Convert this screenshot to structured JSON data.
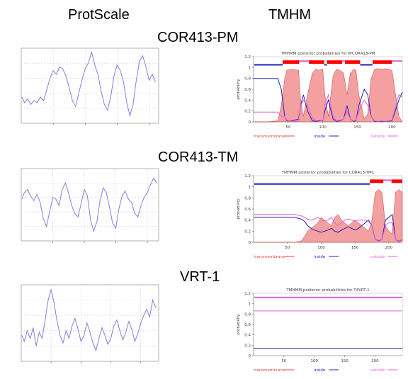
{
  "headers": {
    "left": "ProtScale",
    "right": "TMHM"
  },
  "rows": [
    {
      "label": "COR413-PM"
    },
    {
      "label": "COR413-TM"
    },
    {
      "label": "VRT-1"
    }
  ],
  "colors": {
    "protscale_line": "#8080e0",
    "transmembrane": "#f08080",
    "transmembrane_bar": "#ff0000",
    "inside": "#2020c0",
    "outside": "#e060e0"
  },
  "chart_data": [
    {
      "type": "line",
      "panel": "ProtScale",
      "row": "COR413-PM",
      "x": [
        1,
        5,
        10,
        15,
        20,
        25,
        30,
        35,
        40,
        45,
        50,
        55,
        60,
        65,
        70,
        75,
        80,
        85,
        90,
        95,
        100,
        105,
        110,
        115,
        120,
        125,
        130,
        135,
        140,
        145,
        150,
        155,
        160,
        165,
        170,
        175,
        180,
        185,
        190,
        195,
        200,
        205,
        210
      ],
      "series": [
        {
          "values": [
            -0.6,
            -0.9,
            -0.7,
            -1.0,
            -0.8,
            -0.9,
            -0.6,
            -0.8,
            -0.2,
            0.4,
            0.8,
            0.6,
            1.0,
            0.9,
            0.5,
            -0.1,
            -0.8,
            -1.1,
            -0.4,
            0.3,
            0.9,
            1.2,
            1.8,
            1.1,
            0.6,
            -0.3,
            -1.0,
            -1.3,
            -0.6,
            0.5,
            1.1,
            0.8,
            0.2,
            -0.9,
            -1.6,
            -1.0,
            0.3,
            1.3,
            1.6,
            1.0,
            0.3,
            0.6,
            0.2
          ]
        }
      ],
      "xlim": [
        0,
        215
      ],
      "ylim": [
        -2.0,
        2.0
      ],
      "xticks": [
        50,
        100,
        150,
        200
      ],
      "grid": true
    },
    {
      "type": "area",
      "panel": "TMHMM",
      "row": "COR413-PM",
      "title": "TMHMM posterior probabilities for WCOR413-PM",
      "ylabel": "probability",
      "xlim": [
        0,
        215
      ],
      "ylim": [
        0,
        1.2
      ],
      "xticks": [
        50,
        100,
        150,
        200
      ],
      "yticks": [
        0,
        0.2,
        0.4,
        0.6,
        0.8,
        1.0,
        1.2
      ],
      "legend": [
        "transmembrane",
        "inside",
        "outside"
      ],
      "x": [
        0,
        20,
        35,
        40,
        45,
        48,
        55,
        65,
        68,
        72,
        78,
        85,
        90,
        95,
        100,
        103,
        108,
        115,
        120,
        125,
        130,
        135,
        140,
        145,
        148,
        152,
        160,
        165,
        170,
        175,
        180,
        185,
        190,
        200,
        210,
        215
      ],
      "series": [
        {
          "name": "transmembrane",
          "values": [
            0,
            0,
            0.02,
            0.3,
            0.8,
            0.95,
            0.97,
            0.95,
            0.4,
            0.1,
            0.5,
            0.9,
            0.97,
            0.95,
            0.97,
            0.5,
            0.1,
            0.85,
            0.97,
            0.95,
            0.9,
            0.5,
            0.9,
            0.97,
            0.95,
            0.5,
            0.05,
            0.15,
            0.8,
            0.97,
            0.98,
            0.97,
            0.98,
            0.95,
            0.1,
            0
          ]
        },
        {
          "name": "inside",
          "values": [
            0.8,
            0.8,
            0.8,
            0.6,
            0.1,
            0.02,
            0.02,
            0.05,
            0.3,
            0.5,
            0.2,
            0.02,
            0.01,
            0.02,
            0.02,
            0.2,
            0.4,
            0.05,
            0.01,
            0.02,
            0.05,
            0.3,
            0.05,
            0.01,
            0.02,
            0.3,
            0.6,
            0.5,
            0.1,
            0.01,
            0.01,
            0.01,
            0.01,
            0.02,
            0.4,
            0.55
          ]
        },
        {
          "name": "outside",
          "values": [
            0.18,
            0.18,
            0.18,
            0.1,
            0.1,
            0.03,
            0.01,
            0.01,
            0.3,
            0.4,
            0.3,
            0.08,
            0.02,
            0.03,
            0.01,
            0.3,
            0.5,
            0.1,
            0.02,
            0.03,
            0.05,
            0.2,
            0.05,
            0.02,
            0.03,
            0.2,
            0.4,
            0.3,
            0.1,
            0.02,
            0.01,
            0.02,
            0.01,
            0.03,
            0.5,
            0.45
          ]
        }
      ],
      "topology": [
        {
          "state": "inside",
          "start": 1,
          "end": 42
        },
        {
          "state": "tm",
          "start": 42,
          "end": 66
        },
        {
          "state": "outside",
          "start": 66,
          "end": 80
        },
        {
          "state": "tm",
          "start": 80,
          "end": 102
        },
        {
          "state": "inside",
          "start": 102,
          "end": 106
        },
        {
          "state": "tm",
          "start": 106,
          "end": 128
        },
        {
          "state": "outside",
          "start": 128,
          "end": 132
        },
        {
          "state": "tm",
          "start": 132,
          "end": 154
        },
        {
          "state": "inside",
          "start": 154,
          "end": 172
        },
        {
          "state": "tm",
          "start": 172,
          "end": 200
        },
        {
          "state": "outside",
          "start": 200,
          "end": 215
        }
      ]
    },
    {
      "type": "line",
      "panel": "ProtScale",
      "row": "COR413-TM",
      "x": [
        1,
        5,
        10,
        15,
        20,
        25,
        30,
        35,
        40,
        45,
        50,
        55,
        60,
        65,
        70,
        75,
        80,
        85,
        90,
        95,
        100,
        105,
        110,
        115,
        120,
        125,
        130,
        135,
        140,
        145,
        150,
        155,
        160,
        165,
        170,
        175,
        180,
        185,
        190,
        195,
        200,
        205,
        210,
        215
      ],
      "series": [
        {
          "values": [
            0.6,
            1.0,
            1.2,
            0.8,
            0.5,
            0.9,
            0.4,
            -0.6,
            -1.1,
            -0.2,
            0.7,
            0.6,
            0.2,
            1.2,
            1.6,
            1.0,
            0.2,
            -0.3,
            -0.5,
            0.3,
            1.2,
            0.8,
            -0.7,
            -1.4,
            -0.8,
            0.5,
            1.3,
            1.0,
            0.1,
            -0.9,
            -1.2,
            0.0,
            0.8,
            1.1,
            0.6,
            0.4,
            -0.3,
            -0.5,
            0.2,
            0.7,
            1.0,
            1.5,
            1.9,
            1.6
          ]
        }
      ],
      "xlim": [
        0,
        218
      ],
      "ylim": [
        -2.0,
        2.5
      ],
      "xticks": [
        50,
        100,
        150,
        200
      ],
      "grid": true
    },
    {
      "type": "area",
      "panel": "TMHMM",
      "row": "COR413-TM",
      "title": "TMHMM posterior probabilities for COR413-TM1",
      "ylabel": "probability",
      "xlim": [
        0,
        220
      ],
      "ylim": [
        0,
        1.2
      ],
      "xticks": [
        50,
        100,
        150,
        200
      ],
      "yticks": [
        0,
        0.2,
        0.4,
        0.6,
        0.8,
        1.0,
        1.2
      ],
      "legend": [
        "transmembrane",
        "inside",
        "outside"
      ],
      "x": [
        0,
        20,
        40,
        60,
        70,
        75,
        80,
        85,
        90,
        95,
        100,
        105,
        110,
        115,
        120,
        125,
        130,
        135,
        140,
        145,
        150,
        155,
        160,
        165,
        170,
        175,
        180,
        185,
        190,
        195,
        200,
        205,
        210,
        215,
        220
      ],
      "series": [
        {
          "name": "transmembrane",
          "values": [
            0,
            0,
            0,
            0,
            0.02,
            0.1,
            0.2,
            0.25,
            0.3,
            0.35,
            0.45,
            0.4,
            0.35,
            0.3,
            0.45,
            0.5,
            0.4,
            0.35,
            0.3,
            0.35,
            0.4,
            0.35,
            0.3,
            0.25,
            0.2,
            0.4,
            0.9,
            0.95,
            0.9,
            0.3,
            0.2,
            0.15,
            0.9,
            0.95,
            0.9
          ]
        },
        {
          "name": "inside",
          "values": [
            0.45,
            0.45,
            0.45,
            0.45,
            0.42,
            0.38,
            0.3,
            0.25,
            0.22,
            0.2,
            0.18,
            0.2,
            0.22,
            0.25,
            0.2,
            0.18,
            0.22,
            0.25,
            0.28,
            0.25,
            0.22,
            0.25,
            0.3,
            0.35,
            0.4,
            0.3,
            0.05,
            0.03,
            0.05,
            0.4,
            0.45,
            0.5,
            0.05,
            0.02,
            0.05
          ]
        },
        {
          "name": "outside",
          "values": [
            0.5,
            0.5,
            0.5,
            0.5,
            0.48,
            0.45,
            0.42,
            0.4,
            0.42,
            0.45,
            0.4,
            0.38,
            0.4,
            0.45,
            0.35,
            0.3,
            0.35,
            0.4,
            0.42,
            0.4,
            0.38,
            0.4,
            0.4,
            0.4,
            0.38,
            0.3,
            0.05,
            0.02,
            0.05,
            0.3,
            0.35,
            0.35,
            0.05,
            0.03,
            0.05
          ]
        }
      ],
      "topology": [
        {
          "state": "inside",
          "start": 1,
          "end": 172
        },
        {
          "state": "tm",
          "start": 172,
          "end": 192
        },
        {
          "state": "outside",
          "start": 192,
          "end": 204
        },
        {
          "state": "tm",
          "start": 204,
          "end": 220
        }
      ]
    },
    {
      "type": "line",
      "panel": "ProtScale",
      "row": "VRT-1",
      "x": [
        1,
        5,
        10,
        15,
        20,
        25,
        30,
        35,
        40,
        45,
        50,
        55,
        60,
        65,
        70,
        75,
        80,
        85,
        90,
        95,
        100,
        105,
        110,
        115,
        120,
        125,
        130,
        135,
        140,
        145,
        150,
        155,
        160,
        165,
        170,
        175,
        180,
        185,
        190,
        195,
        200,
        205,
        210,
        215,
        220,
        225
      ],
      "series": [
        {
          "values": [
            -0.8,
            -1.2,
            -0.5,
            -1.0,
            -0.3,
            -1.5,
            -0.6,
            -1.0,
            0.2,
            1.5,
            2.2,
            1.3,
            0.1,
            -0.8,
            -1.3,
            -0.5,
            -1.0,
            -0.2,
            0.3,
            -0.4,
            -1.2,
            -0.8,
            0.0,
            -0.6,
            -1.3,
            -1.8,
            -1.0,
            -0.3,
            -0.8,
            -1.4,
            -1.0,
            -0.2,
            0.2,
            -0.5,
            -1.1,
            -0.6,
            0.1,
            -0.4,
            -1.2,
            -0.7,
            0.0,
            0.5,
            0.9,
            0.4,
            1.5,
            1.0
          ]
        }
      ],
      "xlim": [
        0,
        230
      ],
      "ylim": [
        -2.5,
        2.5
      ],
      "xticks": [
        50,
        100,
        150,
        200
      ],
      "grid": true
    },
    {
      "type": "line",
      "panel": "TMHMM",
      "row": "VRT-1",
      "title": "TMHMM posterior probabilities for T4VRT-1",
      "ylabel": "probability",
      "xlim": [
        0,
        245
      ],
      "ylim": [
        0,
        1.2
      ],
      "xticks": [
        50,
        100,
        150,
        200
      ],
      "yticks": [
        0,
        0.2,
        0.4,
        0.6,
        0.8,
        1.0,
        1.2
      ],
      "legend": [
        "transmembrane",
        "inside",
        "outside"
      ],
      "x": [
        0,
        245
      ],
      "series": [
        {
          "name": "transmembrane",
          "values": [
            0,
            0
          ]
        },
        {
          "name": "inside",
          "values": [
            0.14,
            0.14
          ]
        },
        {
          "name": "outside",
          "values": [
            0.86,
            0.86
          ]
        }
      ],
      "topology": [
        {
          "state": "outside",
          "start": 1,
          "end": 245
        }
      ]
    }
  ]
}
